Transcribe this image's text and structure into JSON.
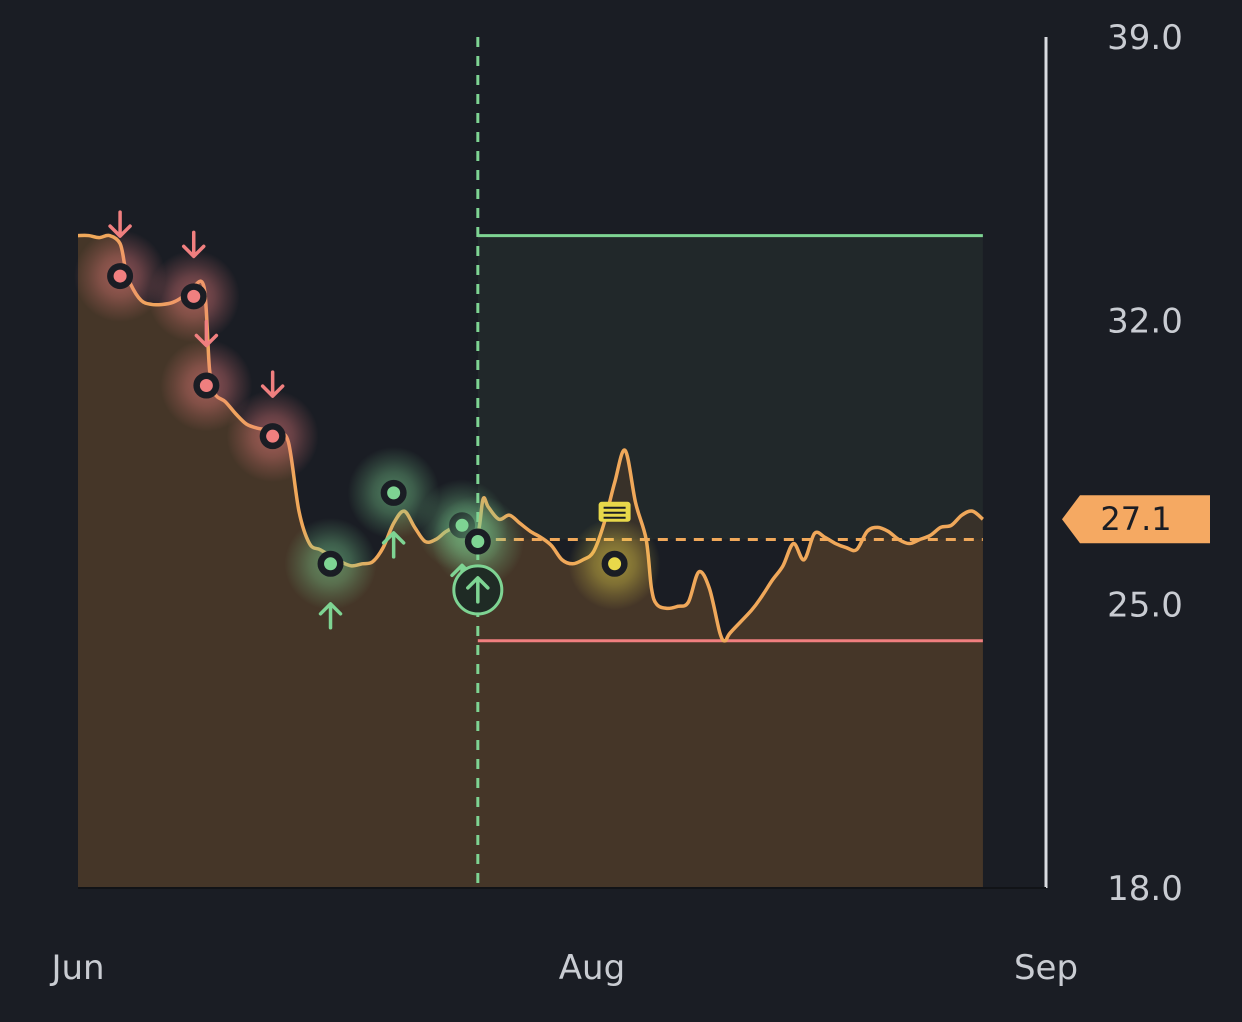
{
  "chart_data": {
    "type": "area",
    "x_axis": {
      "ticks": [
        {
          "label": "Jun",
          "day": 0
        },
        {
          "label": "Aug",
          "day": 61
        },
        {
          "label": "Sep",
          "day": 92
        }
      ]
    },
    "y_axis": {
      "min": 18.0,
      "max": 39.0,
      "ticks": [
        "39.0",
        "32.0",
        "25.0",
        "18.0"
      ],
      "position": "right"
    },
    "x_domain": [
      0,
      92
    ],
    "series": [
      {
        "type": "area",
        "color": "#f0a85a",
        "fill": "#453628",
        "points": [
          [
            0,
            34.1
          ],
          [
            1,
            34.1
          ],
          [
            2,
            34.05
          ],
          [
            3,
            34.1
          ],
          [
            4,
            33.9
          ],
          [
            4.5,
            33.3
          ],
          [
            5,
            32.9
          ],
          [
            6,
            32.5
          ],
          [
            7,
            32.4
          ],
          [
            8,
            32.4
          ],
          [
            9,
            32.45
          ],
          [
            10,
            32.6
          ],
          [
            11,
            32.85
          ],
          [
            12,
            32.8
          ],
          [
            12.5,
            30.8
          ],
          [
            13,
            30.2
          ],
          [
            14,
            30.0
          ],
          [
            15,
            29.7
          ],
          [
            16,
            29.45
          ],
          [
            17,
            29.35
          ],
          [
            18,
            29.3
          ],
          [
            19,
            29.2
          ],
          [
            20,
            29.0
          ],
          [
            21,
            27.3
          ],
          [
            22,
            26.5
          ],
          [
            23,
            26.35
          ],
          [
            24,
            26.2
          ],
          [
            25,
            26.05
          ],
          [
            26,
            25.95
          ],
          [
            27,
            26.0
          ],
          [
            28,
            26.05
          ],
          [
            29,
            26.4
          ],
          [
            30,
            27.0
          ],
          [
            31,
            27.3
          ],
          [
            32,
            26.9
          ],
          [
            33,
            26.55
          ],
          [
            34,
            26.6
          ],
          [
            35,
            26.8
          ],
          [
            36,
            26.9
          ],
          [
            37,
            26.7
          ],
          [
            38,
            26.75
          ],
          [
            38.5,
            27.6
          ],
          [
            39,
            27.4
          ],
          [
            40,
            27.1
          ],
          [
            41,
            27.2
          ],
          [
            42,
            27.0
          ],
          [
            43,
            26.8
          ],
          [
            44,
            26.65
          ],
          [
            45,
            26.45
          ],
          [
            46,
            26.1
          ],
          [
            47,
            26.0
          ],
          [
            48,
            26.1
          ],
          [
            49,
            26.3
          ],
          [
            50,
            27.0
          ],
          [
            51,
            28.0
          ],
          [
            52,
            28.8
          ],
          [
            53,
            27.5
          ],
          [
            54,
            26.6
          ],
          [
            54.5,
            25.4
          ],
          [
            55,
            25.0
          ],
          [
            56,
            24.9
          ],
          [
            57,
            24.95
          ],
          [
            58,
            25.05
          ],
          [
            59,
            25.8
          ],
          [
            60,
            25.4
          ],
          [
            61,
            24.3
          ],
          [
            61.5,
            24.1
          ],
          [
            62,
            24.3
          ],
          [
            64,
            24.85
          ],
          [
            65,
            25.2
          ],
          [
            66,
            25.6
          ],
          [
            67,
            25.95
          ],
          [
            68,
            26.5
          ],
          [
            69,
            26.1
          ],
          [
            70,
            26.75
          ],
          [
            71,
            26.65
          ],
          [
            72,
            26.5
          ],
          [
            73,
            26.4
          ],
          [
            74,
            26.35
          ],
          [
            75,
            26.8
          ],
          [
            76,
            26.9
          ],
          [
            77,
            26.8
          ],
          [
            78,
            26.6
          ],
          [
            79,
            26.5
          ],
          [
            80,
            26.6
          ],
          [
            81,
            26.7
          ],
          [
            82,
            26.9
          ],
          [
            83,
            26.95
          ],
          [
            84,
            27.2
          ],
          [
            85,
            27.3
          ],
          [
            86,
            27.1
          ]
        ]
      }
    ],
    "current_value": {
      "label": "27.1",
      "value": 27.1,
      "color": "#f5a962"
    },
    "markers": [
      {
        "kind": "down",
        "day": 4,
        "value": 33.1,
        "color": "#f07f7f"
      },
      {
        "kind": "down",
        "day": 11,
        "value": 32.6,
        "color": "#f07f7f"
      },
      {
        "kind": "down",
        "day": 12.2,
        "value": 30.4,
        "color": "#f07f7f"
      },
      {
        "kind": "down",
        "day": 18.5,
        "value": 29.15,
        "color": "#f07f7f"
      },
      {
        "kind": "up",
        "day": 24,
        "value": 26.0,
        "color": "#7ed493"
      },
      {
        "kind": "up",
        "day": 30,
        "value": 27.75,
        "color": "#7ed493"
      },
      {
        "kind": "up",
        "day": 36.5,
        "value": 26.95,
        "color": "#7ed493"
      },
      {
        "kind": "up",
        "day": 38,
        "value": 26.55,
        "color": "#7ed493"
      },
      {
        "kind": "news",
        "day": 51,
        "value": 26.0,
        "color": "#e8d84a"
      }
    ],
    "entry_marker": {
      "day": 38,
      "value": 25.8,
      "icon": "up-arrow-circle-icon",
      "color": "#7ed493"
    },
    "position_box": {
      "start_day": 38,
      "end_day": 86,
      "target": 34.1,
      "stop": 24.1,
      "entry": 26.6,
      "target_color": "#7ed493",
      "stop_color": "#f07f7f",
      "box_fill": "#232a2b"
    },
    "grid": false,
    "legend": "none"
  }
}
